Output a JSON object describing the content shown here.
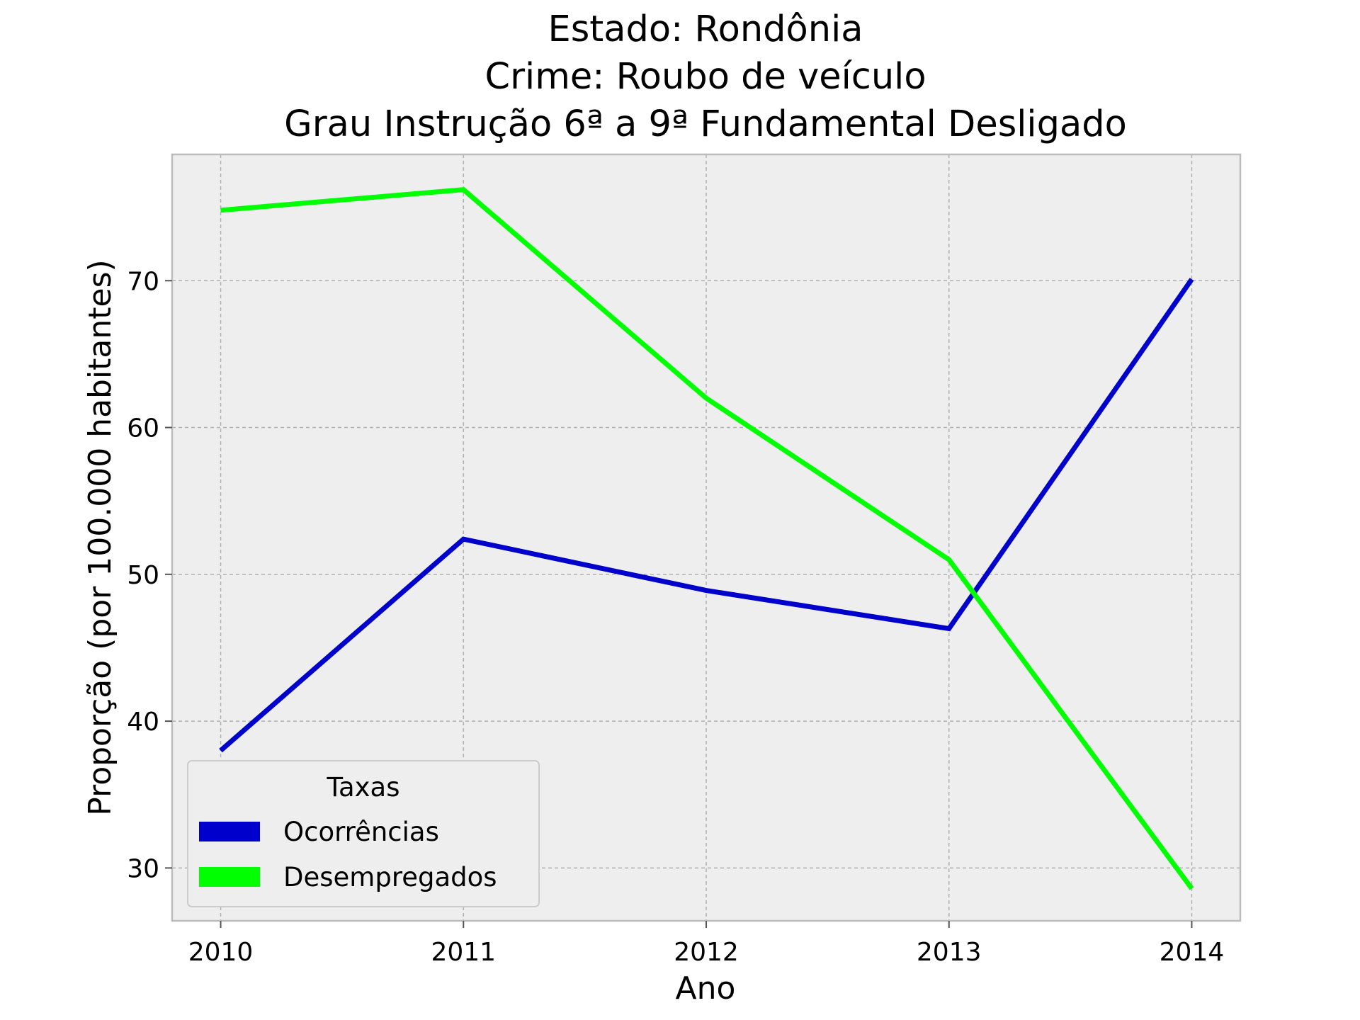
{
  "chart_data": {
    "type": "line",
    "title_lines": [
      "Estado: Rondônia",
      "Crime: Roubo de veículo",
      "Grau Instrução  6ª a 9ª Fundamental   Desligado"
    ],
    "xlabel": "Ano",
    "ylabel": "Proporção (por 100.000 habitantes)",
    "x": [
      2010,
      2011,
      2012,
      2013,
      2014
    ],
    "x_tick_labels": [
      "2010",
      "2011",
      "2012",
      "2013",
      "2014"
    ],
    "y_ticks": [
      30,
      40,
      50,
      60,
      70
    ],
    "y_tick_labels": [
      "30",
      "40",
      "50",
      "60",
      "70"
    ],
    "xlim": [
      2009.8,
      2014.2
    ],
    "ylim": [
      26.4,
      78.6
    ],
    "grid": true,
    "legend": {
      "title": "Taxas",
      "placement": "lower-left"
    },
    "series": [
      {
        "name": "Ocorrências",
        "color": "#0000cc",
        "values": [
          38.0,
          52.4,
          48.9,
          46.3,
          70.1
        ]
      },
      {
        "name": "Desempregados",
        "color": "#00ff00",
        "values": [
          74.8,
          76.2,
          62.0,
          51.0,
          28.6
        ]
      }
    ]
  }
}
